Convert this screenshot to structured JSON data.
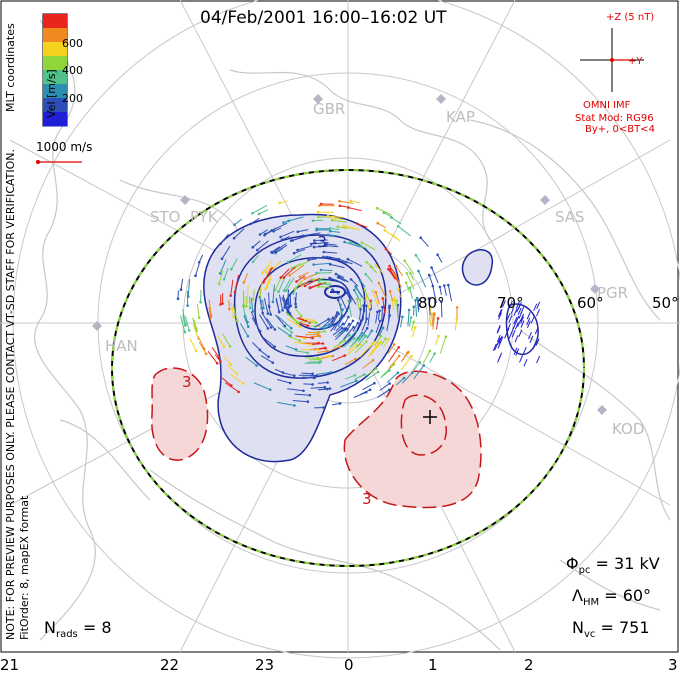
{
  "title": "04/Feb/2001 16:00–16:02 UT",
  "colorbar": {
    "label": "Vel [m/s]",
    "ticks": [
      "600",
      "400",
      "200"
    ],
    "colors": [
      "#e8261b",
      "#f08a1f",
      "#f5d21f",
      "#8fd63a",
      "#4fc28a",
      "#2d8fb0",
      "#2f4fb8",
      "#1f1fd6"
    ]
  },
  "scale_arrow_label": "1000 m/s",
  "imf": {
    "z_label": "+Z (5 nT)",
    "y_label": "+Y",
    "source": "OMNI IMF",
    "model": "Stat Mod: RG96",
    "condition": "By+, 0<BT<4"
  },
  "left_notes": {
    "mlt": "MLT coordinates",
    "preview": "NOTE: FOR PREVIEW PURPOSES ONLY. PLEASE CONTACT VT-SD STAFF FOR VERIFICATION.",
    "fit": "FitOrder: 8, mapEX format"
  },
  "radar_sites": [
    "GBR",
    "KAP",
    "STO",
    "PYK",
    "SAS",
    "PGR",
    "HAN",
    "KOD"
  ],
  "latitude_labels": [
    "80°",
    "70°",
    "60°",
    "50°"
  ],
  "stats": {
    "phi_pc": "Φpc = 31 kV",
    "lambda_hm": "ΛHM = 60°",
    "n_vc": "Nvc = 751",
    "n_rads": "Nrads = 8"
  },
  "mlt_ticks": [
    "21",
    "22",
    "23",
    "0",
    "1",
    "2",
    "3"
  ],
  "potential_labels": [
    "-3",
    "3",
    "3"
  ],
  "colors": {
    "negative_cell": "#dfe0f2",
    "positive_cell": "#f5d7d7",
    "negative_contour": "#1f2a9c",
    "positive_contour": "#c8171a",
    "map_lines": "#c8c8c8"
  }
}
